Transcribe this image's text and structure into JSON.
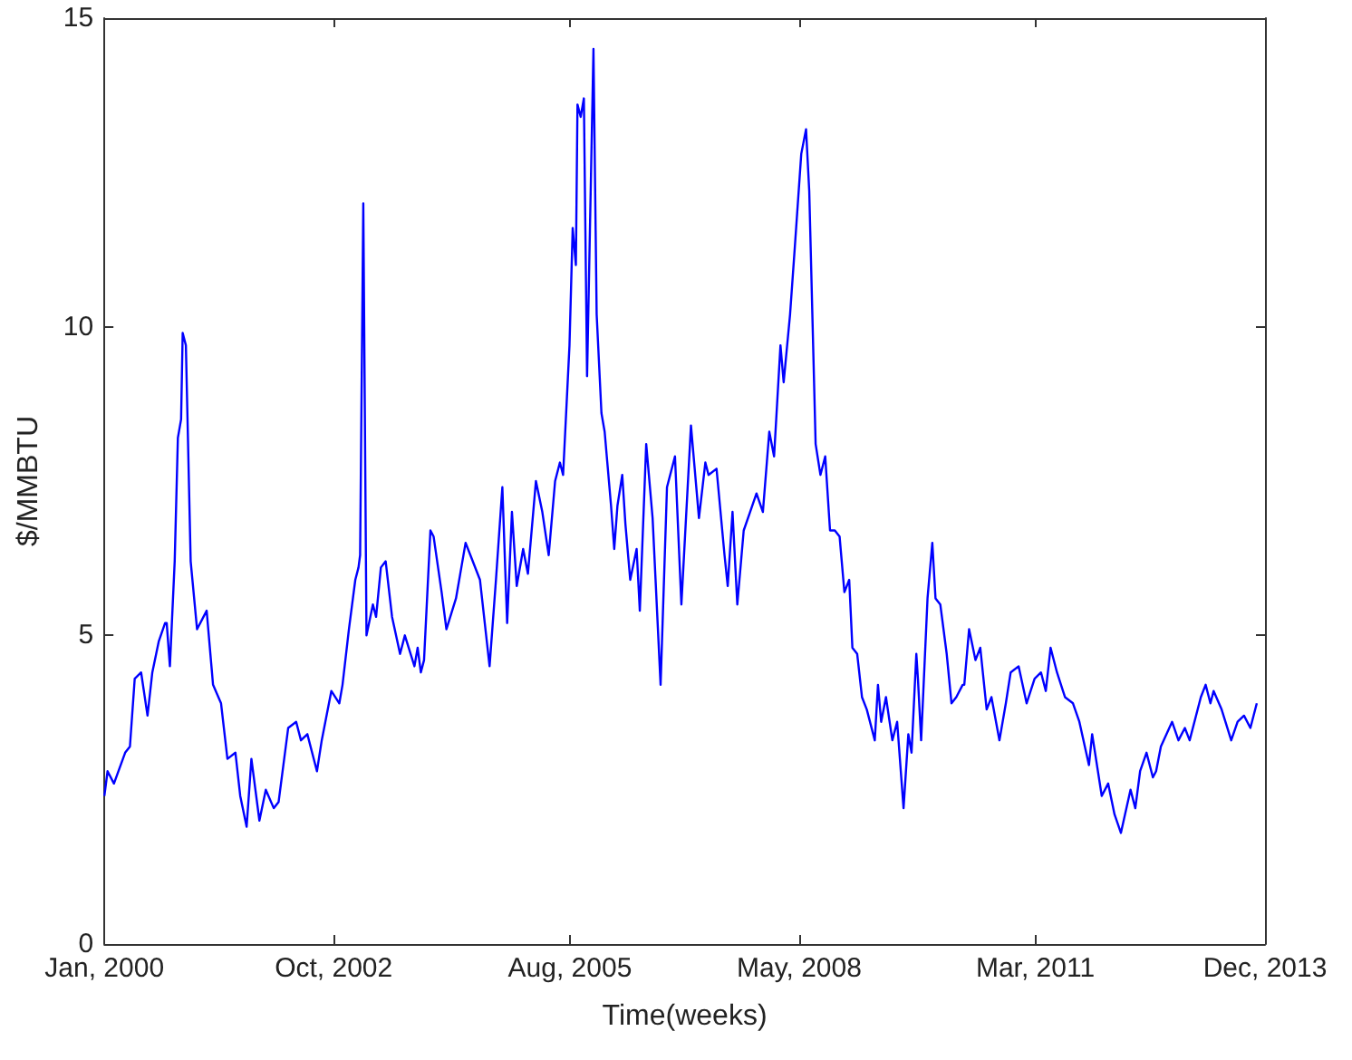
{
  "chart_data": {
    "type": "line",
    "xlabel": "Time(weeks)",
    "ylabel": "$/MMBTU",
    "xlim": [
      "2000-01-01",
      "2013-12-01"
    ],
    "xticks": [
      {
        "value": "2000-01",
        "label": "Jan, 2000"
      },
      {
        "value": "2002-10",
        "label": "Oct, 2002"
      },
      {
        "value": "2005-08",
        "label": "Aug, 2005"
      },
      {
        "value": "2008-05",
        "label": "May, 2008"
      },
      {
        "value": "2011-03",
        "label": "Mar, 2011"
      },
      {
        "value": "2013-12",
        "label": "Dec, 2013"
      }
    ],
    "ylim": [
      0,
      15
    ],
    "yticks": [
      0,
      5,
      10,
      15
    ],
    "grid": false,
    "marker": "none",
    "line_style": "solid",
    "series": [
      {
        "color": "#0000ff",
        "x": [
          "2000-01-01",
          "2000-01-15",
          "2000-02-12",
          "2000-04-01",
          "2000-04-22",
          "2000-05-13",
          "2000-06-10",
          "2000-07-08",
          "2000-07-29",
          "2000-08-26",
          "2000-09-23",
          "2000-09-30",
          "2000-10-14",
          "2000-11-04",
          "2000-11-18",
          "2000-12-02",
          "2000-12-09",
          "2000-12-23",
          "2001-01-13",
          "2001-02-10",
          "2001-03-10",
          "2001-03-24",
          "2001-04-21",
          "2001-05-26",
          "2001-06-23",
          "2001-07-28",
          "2001-08-18",
          "2001-09-15",
          "2001-10-06",
          "2001-11-10",
          "2001-12-08",
          "2002-01-12",
          "2002-02-02",
          "2002-03-16",
          "2002-04-20",
          "2002-05-11",
          "2002-06-08",
          "2002-07-20",
          "2002-08-10",
          "2002-09-21",
          "2002-10-26",
          "2002-11-09",
          "2002-12-07",
          "2003-01-04",
          "2003-01-18",
          "2003-01-25",
          "2003-02-08",
          "2003-02-22",
          "2003-03-22",
          "2003-04-05",
          "2003-04-26",
          "2003-05-17",
          "2003-06-14",
          "2003-07-19",
          "2003-08-09",
          "2003-09-20",
          "2003-10-04",
          "2003-10-18",
          "2003-11-01",
          "2003-11-29",
          "2003-12-13",
          "2004-01-17",
          "2004-02-07",
          "2004-03-20",
          "2004-05-01",
          "2004-05-22",
          "2004-07-03",
          "2004-08-14",
          "2004-09-11",
          "2004-10-09",
          "2004-10-30",
          "2004-11-20",
          "2004-12-11",
          "2005-01-08",
          "2005-01-29",
          "2005-03-05",
          "2005-04-02",
          "2005-04-30",
          "2005-05-28",
          "2005-06-18",
          "2005-07-02",
          "2005-07-30",
          "2005-08-13",
          "2005-08-27",
          "2005-09-03",
          "2005-09-17",
          "2005-10-01",
          "2005-10-15",
          "2005-11-12",
          "2005-11-26",
          "2005-12-17",
          "2005-12-31",
          "2006-01-28",
          "2006-02-11",
          "2006-02-25",
          "2006-03-18",
          "2006-04-01",
          "2006-04-22",
          "2006-05-20",
          "2006-06-03",
          "2006-07-01",
          "2006-07-29",
          "2006-09-02",
          "2006-09-30",
          "2006-11-04",
          "2006-12-02",
          "2007-01-13",
          "2007-02-17",
          "2007-03-17",
          "2007-03-31",
          "2007-05-05",
          "2007-06-09",
          "2007-06-23",
          "2007-07-14",
          "2007-08-04",
          "2007-09-01",
          "2007-09-29",
          "2007-10-27",
          "2007-11-24",
          "2007-12-22",
          "2008-01-12",
          "2008-02-09",
          "2008-02-23",
          "2008-03-22",
          "2008-04-12",
          "2008-05-10",
          "2008-05-31",
          "2008-06-14",
          "2008-07-12",
          "2008-08-02",
          "2008-08-23",
          "2008-09-13",
          "2008-10-04",
          "2008-10-25",
          "2008-11-15",
          "2008-12-06",
          "2008-12-20",
          "2009-01-10",
          "2009-01-31",
          "2009-02-21",
          "2009-03-28",
          "2009-04-11",
          "2009-04-25",
          "2009-05-16",
          "2009-06-13",
          "2009-07-04",
          "2009-08-01",
          "2009-08-22",
          "2009-09-05",
          "2009-09-26",
          "2009-10-03",
          "2009-10-17",
          "2009-11-14",
          "2009-12-05",
          "2009-12-19",
          "2010-01-09",
          "2010-02-06",
          "2010-02-27",
          "2010-03-20",
          "2010-04-17",
          "2010-04-24",
          "2010-05-15",
          "2010-06-12",
          "2010-07-03",
          "2010-07-31",
          "2010-08-21",
          "2010-09-25",
          "2010-10-23",
          "2010-11-13",
          "2010-12-18",
          "2011-01-22",
          "2011-02-26",
          "2011-03-26",
          "2011-04-16",
          "2011-05-07",
          "2011-06-04",
          "2011-07-09",
          "2011-08-13",
          "2011-09-10",
          "2011-10-22",
          "2011-11-05",
          "2011-12-17",
          "2012-01-14",
          "2012-02-11",
          "2012-03-10",
          "2012-04-21",
          "2012-05-12",
          "2012-06-02",
          "2012-06-30",
          "2012-07-28",
          "2012-08-11",
          "2012-09-01",
          "2012-10-20",
          "2012-11-17",
          "2012-12-15",
          "2013-01-05",
          "2013-02-23",
          "2013-03-16",
          "2013-04-06",
          "2013-04-20",
          "2013-05-25",
          "2013-07-06",
          "2013-08-03",
          "2013-08-31",
          "2013-09-28",
          "2013-10-26"
        ],
        "values": [
          2.4,
          2.8,
          2.6,
          3.1,
          3.2,
          4.3,
          4.4,
          3.7,
          4.4,
          4.9,
          5.2,
          5.2,
          4.5,
          6.2,
          8.2,
          8.5,
          9.9,
          9.7,
          6.2,
          5.1,
          5.3,
          5.4,
          4.2,
          3.9,
          3.0,
          3.1,
          2.4,
          1.9,
          3.0,
          2.0,
          2.5,
          2.2,
          2.3,
          3.5,
          3.6,
          3.3,
          3.4,
          2.8,
          3.3,
          4.1,
          3.9,
          4.2,
          5.1,
          5.9,
          6.1,
          6.3,
          12.0,
          5.0,
          5.5,
          5.3,
          6.1,
          6.2,
          5.3,
          4.7,
          5.0,
          4.5,
          4.8,
          4.4,
          4.6,
          6.7,
          6.6,
          5.7,
          5.1,
          5.6,
          6.5,
          6.3,
          5.9,
          4.5,
          5.9,
          7.4,
          5.2,
          7.0,
          5.8,
          6.4,
          6.0,
          7.5,
          7.0,
          6.3,
          7.5,
          7.8,
          7.6,
          9.7,
          11.6,
          11.0,
          13.6,
          13.4,
          13.7,
          9.2,
          14.5,
          10.2,
          8.6,
          8.3,
          7.1,
          6.4,
          7.1,
          7.6,
          6.8,
          5.9,
          6.4,
          5.4,
          8.1,
          6.9,
          4.2,
          7.4,
          7.9,
          5.5,
          8.4,
          6.9,
          7.8,
          7.6,
          7.7,
          6.3,
          5.8,
          7.0,
          5.5,
          6.7,
          7.0,
          7.3,
          7.0,
          8.3,
          7.9,
          9.7,
          9.1,
          10.2,
          11.3,
          12.8,
          13.2,
          12.2,
          8.1,
          7.6,
          7.9,
          6.7,
          6.7,
          6.6,
          5.7,
          5.9,
          4.8,
          4.7,
          4.0,
          3.8,
          3.3,
          4.2,
          3.6,
          4.0,
          3.3,
          3.6,
          2.2,
          3.4,
          3.1,
          4.7,
          4.3,
          3.3,
          5.6,
          6.5,
          5.6,
          5.5,
          4.7,
          3.9,
          4.0,
          4.2,
          4.2,
          5.1,
          4.6,
          4.8,
          3.8,
          4.0,
          3.3,
          3.9,
          4.4,
          4.5,
          3.9,
          4.3,
          4.4,
          4.1,
          4.8,
          4.4,
          4.0,
          3.9,
          3.6,
          2.9,
          3.4,
          2.4,
          2.6,
          2.1,
          1.8,
          2.5,
          2.2,
          2.8,
          3.1,
          2.7,
          2.8,
          3.2,
          3.6,
          3.3,
          3.5,
          3.3,
          4.0,
          4.2,
          3.9,
          4.1,
          3.8,
          3.3,
          3.6,
          3.7,
          3.5,
          3.9
        ]
      }
    ]
  }
}
